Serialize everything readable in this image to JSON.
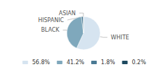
{
  "chart_data": {
    "type": "pie",
    "categories": [
      "WHITE",
      "BLACK",
      "HISPANIC",
      "ASIAN"
    ],
    "values": [
      56.8,
      41.2,
      1.8,
      0.2
    ],
    "value_labels": [
      "56.8%",
      "41.2%",
      "1.8%",
      "0.2%"
    ],
    "colors": [
      "#d6e4f0",
      "#7fa8bc",
      "#4a7a94",
      "#1e4a60"
    ],
    "legend": "bottom"
  }
}
